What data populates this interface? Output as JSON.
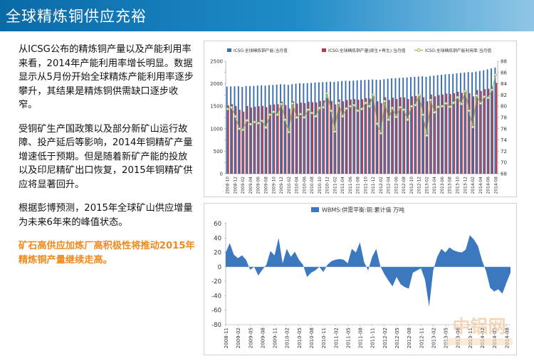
{
  "header": {
    "title": "全球精炼铜供应充裕"
  },
  "text": {
    "p1": "从ICSG公布的精炼铜产量以及产能利用率来看，2014年产能利用率增长明显。数据显示从5月份开始全球精炼产能利用率逐步攀升，其结果是精炼铜供需缺口逐步收窄。",
    "p2": "受铜矿生产国政策以及部分新矿山运行故障、投产延后等影响，2014年铜精矿产量增速低于预期。但是随着新矿产能的投放以及印尼精矿出口恢复，2015年铜精矿供应将显著回升。",
    "p3": "根据彭博预测，2015年全球矿山供应增量为未来6年来的峰值状态。",
    "p4": "矿石高供应加炼厂高积极性将推动2015年精炼铜产量继续走高。"
  },
  "watermark": {
    "text": "中铝网"
  },
  "colors": {
    "header": "#1478b8",
    "capacity": "#3a6fb0",
    "production": "#b03a48",
    "rate": "#9bbb59",
    "area": "#3c78c0",
    "highlight": "#f08a1e"
  },
  "chart_data": [
    {
      "type": "bar",
      "legend": [
        "ICSG:全球精炼铜产能:当月值",
        "ICSG:全球精炼铜产量(原生+再生):当月值",
        "ICSG:全球精炼铜产能利用率:当月值"
      ],
      "x": [
        "2008-10",
        "2008-11",
        "2008-12",
        "2009-01",
        "2009-02",
        "2009-03",
        "2009-04",
        "2009-05",
        "2009-06",
        "2009-07",
        "2009-08",
        "2009-09",
        "2009-10",
        "2009-11",
        "2009-12",
        "2010-01",
        "2010-02",
        "2010-03",
        "2010-04",
        "2010-05",
        "2010-06",
        "2010-07",
        "2010-08",
        "2010-09",
        "2010-10",
        "2010-11",
        "2010-12",
        "2011-01",
        "2011-02",
        "2011-03",
        "2011-04",
        "2011-05",
        "2011-06",
        "2011-07",
        "2011-08",
        "2011-09",
        "2011-10",
        "2011-11",
        "2011-12",
        "2012-01",
        "2012-02",
        "2012-03",
        "2012-04",
        "2012-05",
        "2012-06",
        "2012-07",
        "2012-08",
        "2012-09",
        "2012-10",
        "2012-11",
        "2012-12",
        "2013-01",
        "2013-02",
        "2013-03",
        "2013-04",
        "2013-05",
        "2013-06",
        "2013-07",
        "2013-08",
        "2013-09",
        "2013-10",
        "2013-11",
        "2013-12",
        "2014-01",
        "2014-02",
        "2014-03",
        "2014-04",
        "2014-05",
        "2014-06",
        "2014-07",
        "2014-08"
      ],
      "x_ticks": [
        "2008-10",
        "2008-12",
        "2009-02",
        "2009-04",
        "2009-06",
        "2009-08",
        "2009-10",
        "2009-12",
        "2010-02",
        "2010-04",
        "2010-06",
        "2010-08",
        "2010-10",
        "2010-12",
        "2011-02",
        "2011-04",
        "2011-06",
        "2011-08",
        "2011-10",
        "2011-12",
        "2012-02",
        "2012-04",
        "2012-06",
        "2012-08",
        "2012-10",
        "2012-12",
        "2013-02",
        "2013-04",
        "2013-06",
        "2013-08",
        "2013-10",
        "2013-12",
        "2014-02",
        "2014-04",
        "2014-06",
        "2014-08"
      ],
      "capacity": [
        1935,
        1940,
        1942,
        1945,
        1930,
        1950,
        1948,
        1952,
        1960,
        1965,
        1958,
        1970,
        1972,
        1980,
        1990,
        1985,
        1975,
        1990,
        2000,
        2010,
        2008,
        2015,
        2020,
        2025,
        2030,
        2035,
        2040,
        2045,
        2040,
        2050,
        2060,
        2065,
        2062,
        2070,
        2075,
        2080,
        2085,
        2090,
        2095,
        2090,
        2085,
        2100,
        2110,
        2120,
        2125,
        2130,
        2135,
        2140,
        2150,
        2155,
        2160,
        2165,
        2155,
        2170,
        2180,
        2190,
        2200,
        2210,
        2215,
        2220,
        2230,
        2240,
        2250,
        2260,
        2255,
        2270,
        2285,
        2300,
        2320,
        2340,
        2360
      ],
      "production": [
        1520,
        1545,
        1505,
        1420,
        1380,
        1505,
        1470,
        1490,
        1500,
        1510,
        1480,
        1530,
        1540,
        1545,
        1600,
        1525,
        1450,
        1610,
        1560,
        1580,
        1570,
        1600,
        1590,
        1585,
        1620,
        1625,
        1680,
        1620,
        1540,
        1650,
        1610,
        1640,
        1650,
        1660,
        1645,
        1655,
        1680,
        1670,
        1720,
        1610,
        1570,
        1700,
        1640,
        1690,
        1660,
        1700,
        1695,
        1660,
        1720,
        1730,
        1770,
        1700,
        1610,
        1760,
        1720,
        1750,
        1760,
        1780,
        1770,
        1790,
        1820,
        1800,
        1860,
        1790,
        1720,
        1860,
        1840,
        1880,
        1890,
        1940,
        2020
      ],
      "rate": [
        79.5,
        79.8,
        78.2,
        76.0,
        75.8,
        77.5,
        76.8,
        77.2,
        77.0,
        77.4,
        76.2,
        78.5,
        79.0,
        78.5,
        80.4,
        77.6,
        75.4,
        80.5,
        78.0,
        78.6,
        78.0,
        79.4,
        78.8,
        78.2,
        79.7,
        79.8,
        82.3,
        79.2,
        75.5,
        80.6,
        78.2,
        79.6,
        80.0,
        80.2,
        79.2,
        79.5,
        80.6,
        80.0,
        82.1,
        76.9,
        75.2,
        80.9,
        77.6,
        79.7,
        78.1,
        79.8,
        79.4,
        77.6,
        80.0,
        80.2,
        82.0,
        78.5,
        74.8,
        81.1,
        78.9,
        79.9,
        80.0,
        80.5,
        79.9,
        80.6,
        81.6,
        80.4,
        82.7,
        79.2,
        76.3,
        81.9,
        80.5,
        81.7,
        81.5,
        82.9,
        85.6
      ],
      "ylim": [
        0,
        2500
      ],
      "ylim_right": [
        68,
        88
      ],
      "y_ticks": [
        0,
        250,
        500,
        750,
        1000,
        1250,
        1500,
        1750,
        2000,
        2250,
        2500
      ],
      "y_right_ticks": [
        68,
        70,
        72,
        74,
        76,
        78,
        80,
        82,
        84,
        86,
        88
      ],
      "y_ticks_shown": [
        "0",
        "500",
        "1000",
        "1500",
        "2000",
        "2500"
      ],
      "y_right_ticks_shown": [
        "68",
        "70",
        "72",
        "74",
        "76",
        "78",
        "80",
        "82",
        "84",
        "86",
        "88"
      ]
    },
    {
      "type": "area",
      "legend": [
        "WBMS:供需平衡:铜:累计值 万吨"
      ],
      "x": [
        "2008-11",
        "2008-12",
        "2009-01",
        "2009-02",
        "2009-03",
        "2009-04",
        "2009-05",
        "2009-06",
        "2009-07",
        "2009-08",
        "2009-09",
        "2009-10",
        "2009-11",
        "2009-12",
        "2010-01",
        "2010-02",
        "2010-03",
        "2010-04",
        "2010-05",
        "2010-06",
        "2010-07",
        "2010-08",
        "2010-09",
        "2010-10",
        "2010-11",
        "2010-12",
        "2011-01",
        "2011-02",
        "2011-03",
        "2011-04",
        "2011-05",
        "2011-06",
        "2011-07",
        "2011-08",
        "2011-09",
        "2011-10",
        "2011-11",
        "2011-12",
        "2012-01",
        "2012-02",
        "2012-03",
        "2012-04",
        "2012-05",
        "2012-06",
        "2012-07",
        "2012-08",
        "2012-09",
        "2012-10",
        "2012-11",
        "2012-12",
        "2013-01",
        "2013-02",
        "2013-03",
        "2013-04",
        "2013-05",
        "2013-06",
        "2013-07",
        "2013-08",
        "2013-09",
        "2013-10",
        "2013-11",
        "2013-12",
        "2014-01",
        "2014-02",
        "2014-03",
        "2014-04",
        "2014-05",
        "2014-06",
        "2014-07",
        "2014-08",
        "2014-09"
      ],
      "x_ticks": [
        "2008-11",
        "2009-02",
        "2009-05",
        "2009-08",
        "2009-11",
        "2010-02",
        "2010-05",
        "2010-08",
        "2010-11",
        "2011-02",
        "2011-05",
        "2011-08",
        "2011-11",
        "2012-02",
        "2012-05",
        "2012-08",
        "2012-11",
        "2013-02",
        "2013-05",
        "2013-08",
        "2013-11",
        "2014-02",
        "2014-05",
        "2014-08"
      ],
      "values": [
        20,
        33,
        17,
        12,
        16,
        10,
        -4,
        0,
        -12,
        -4,
        3,
        22,
        16,
        40,
        5,
        25,
        14,
        21,
        10,
        3,
        -14,
        -8,
        -5,
        0,
        -7,
        3,
        8,
        10,
        11,
        10,
        5,
        25,
        20,
        34,
        7,
        -5,
        14,
        25,
        1,
        -10,
        -19,
        -27,
        -14,
        -24,
        -28,
        -30,
        -8,
        -5,
        -2,
        -18,
        -55,
        -5,
        14,
        25,
        20,
        27,
        23,
        21,
        20,
        24,
        44,
        38,
        29,
        9,
        -6,
        -29,
        -34,
        -31,
        -37,
        -22,
        -8
      ],
      "ylim": [
        -80,
        60
      ],
      "y_ticks": [
        -80,
        -60,
        -40,
        -20,
        0,
        20,
        40,
        60
      ]
    }
  ]
}
